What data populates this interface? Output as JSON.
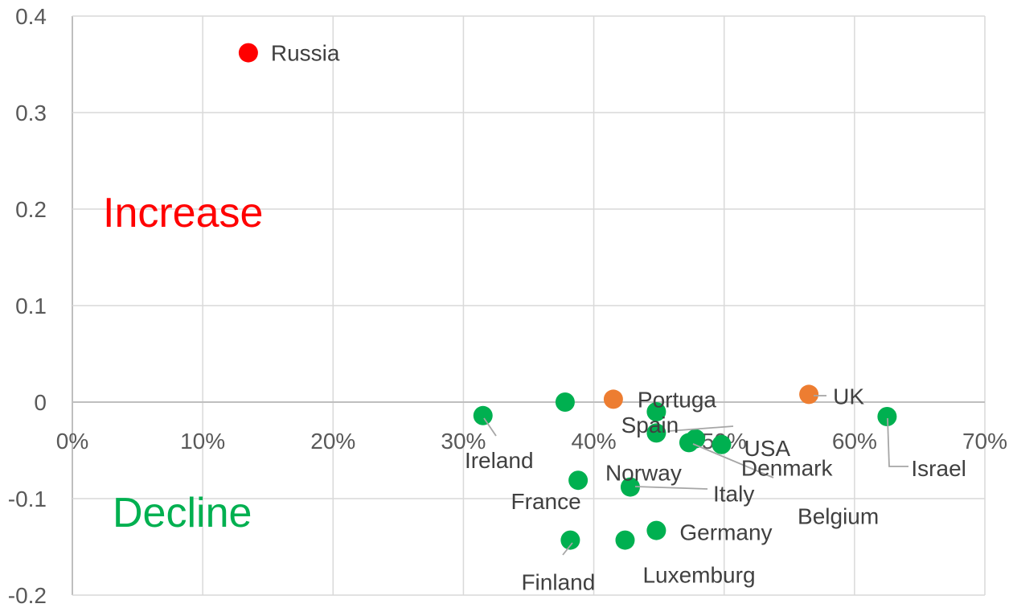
{
  "chart_data": {
    "type": "scatter",
    "x_axis": {
      "min": 0,
      "max": 0.7,
      "step": 0.1,
      "format": "percent",
      "tick_labels": [
        "0%",
        "10%",
        "20%",
        "30%",
        "40%",
        "50%",
        "60%",
        "70%"
      ]
    },
    "y_axis": {
      "min": -0.2,
      "max": 0.4,
      "step": 0.1,
      "tick_labels": [
        "-0.2",
        "-0.1",
        "0",
        "0.1",
        "0.2",
        "0.3",
        "0.4"
      ]
    },
    "grid": true,
    "colors": {
      "increase": "#ff0000",
      "neutral": "#ed7d31",
      "decline": "#00b050"
    },
    "annotations": [
      {
        "key": "increase",
        "text": "Increase",
        "color": "#ff0000"
      },
      {
        "key": "decline",
        "text": "Decline",
        "color": "#00b050"
      }
    ],
    "points": [
      {
        "label": "Russia",
        "x": 0.135,
        "y": 0.362,
        "color": "#ff0000"
      },
      {
        "label": "Portuga",
        "x": 0.415,
        "y": 0.003,
        "color": "#ed7d31"
      },
      {
        "label": "UK",
        "x": 0.565,
        "y": 0.008,
        "color": "#ed7d31"
      },
      {
        "label": "Ireland",
        "x": 0.315,
        "y": -0.014,
        "color": "#00b050"
      },
      {
        "label": "France",
        "x": 0.388,
        "y": -0.081,
        "color": "#00b050"
      },
      {
        "label": "Spain",
        "x": 0.448,
        "y": -0.01,
        "color": "#00b050"
      },
      {
        "label": "Norway",
        "x": 0.448,
        "y": -0.032,
        "color": "#00b050"
      },
      {
        "label": "Denmark",
        "x": 0.473,
        "y": -0.042,
        "color": "#00b050"
      },
      {
        "label": "Belgium",
        "x": 0.478,
        "y": -0.038,
        "color": "#00b050"
      },
      {
        "label": "USA",
        "x": 0.498,
        "y": -0.044,
        "color": "#00b050"
      },
      {
        "label": "Israel",
        "x": 0.625,
        "y": -0.015,
        "color": "#00b050"
      },
      {
        "label": "Italy",
        "x": 0.428,
        "y": -0.088,
        "color": "#00b050"
      },
      {
        "label": "Germany",
        "x": 0.448,
        "y": -0.133,
        "color": "#00b050"
      },
      {
        "label": "Luxemburg",
        "x": 0.424,
        "y": -0.143,
        "color": "#00b050"
      },
      {
        "label": "Finland",
        "x": 0.382,
        "y": -0.143,
        "color": "#00b050"
      },
      {
        "label": "",
        "x": 0.378,
        "y": 0.0,
        "color": "#00b050"
      }
    ]
  }
}
